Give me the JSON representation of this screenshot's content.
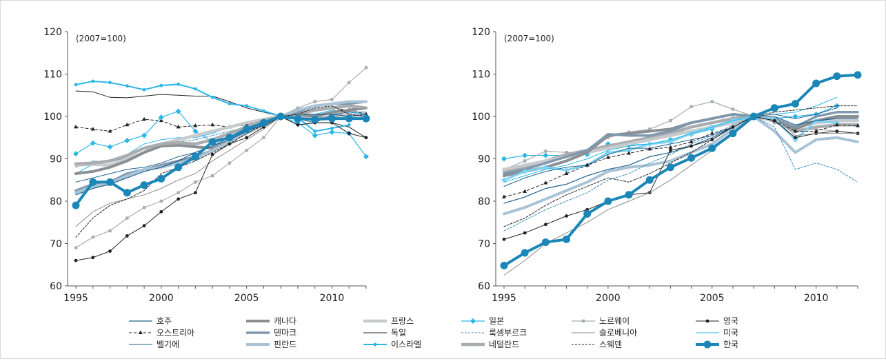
{
  "colors": {
    "dark_blue": "#1e5f8e",
    "mid_blue": "#3d8fc0",
    "cyan": "#2bb6e8",
    "light_cyan": "#7fd3f1",
    "grey_dark": "#8a8f93",
    "grey_mid": "#a9adb0",
    "grey_light": "#c8cbce",
    "steel": "#7f98ad",
    "pale_blue": "#a9c3d6",
    "korea": "#1b86b8",
    "black": "#222222"
  },
  "legend": [
    {
      "key": "aus",
      "label": "호주"
    },
    {
      "key": "can",
      "label": "캐나다"
    },
    {
      "key": "fra",
      "label": "프랑스"
    },
    {
      "key": "jpn",
      "label": "일본"
    },
    {
      "key": "nor",
      "label": "노르웨이"
    },
    {
      "key": "uk",
      "label": "영국"
    },
    {
      "key": "aut",
      "label": "오스트리아"
    },
    {
      "key": "den",
      "label": "덴마크"
    },
    {
      "key": "ger",
      "label": "독일"
    },
    {
      "key": "lux",
      "label": "룩셈부르크"
    },
    {
      "key": "slo",
      "label": "슬로베니아"
    },
    {
      "key": "usa",
      "label": "미국"
    },
    {
      "key": "bel",
      "label": "벨기에"
    },
    {
      "key": "fin",
      "label": "핀란드"
    },
    {
      "key": "isr",
      "label": "이스라엘"
    },
    {
      "key": "ned",
      "label": "네덜란드"
    },
    {
      "key": "swe",
      "label": "스웨덴"
    },
    {
      "key": "kor",
      "label": "한국"
    }
  ],
  "chart_data": [
    {
      "type": "line",
      "note": "(2007=100)",
      "ylim": [
        60,
        120
      ],
      "yticks": [
        "60",
        "70",
        "80",
        "90",
        "100",
        "110",
        "120"
      ],
      "xticks": [
        "1995",
        "2000",
        "2005",
        "2010"
      ],
      "x": [
        1995,
        1996,
        1997,
        1998,
        1999,
        2000,
        2001,
        2002,
        2003,
        2004,
        2005,
        2006,
        2007,
        2008,
        2009,
        2010,
        2011,
        2012
      ],
      "series": [
        {
          "key": "ger",
          "values": [
            106,
            105.8,
            104.5,
            104.4,
            104.8,
            105.2,
            105,
            104.8,
            104.8,
            103.5,
            102,
            101,
            100,
            98,
            98.5,
            98.5,
            97.5,
            95
          ]
        },
        {
          "key": "isr",
          "values": [
            107.5,
            108.3,
            108,
            107.2,
            106.3,
            107.3,
            107.6,
            106.5,
            104.5,
            103,
            102.5,
            101.3,
            100,
            99.7,
            96.5,
            97.2,
            98,
            null
          ]
        },
        {
          "key": "aut",
          "values": [
            97.5,
            97,
            96.5,
            98,
            99.3,
            99,
            97.5,
            97.8,
            98,
            97.5,
            98,
            99,
            100,
            100.5,
            101.5,
            102,
            101.5,
            100.5
          ]
        },
        {
          "key": "jpn",
          "values": [
            91.2,
            93.7,
            92.8,
            94.3,
            95.5,
            99.8,
            101.2,
            96.5,
            94,
            94.8,
            97,
            99,
            100,
            98.5,
            95.5,
            96.3,
            96,
            90.5
          ]
        },
        {
          "key": "usa",
          "values": [
            86.5,
            88.7,
            89.5,
            91,
            93.5,
            94.5,
            95,
            95,
            96,
            97.5,
            98.5,
            99.5,
            100,
            100,
            100.5,
            101.5,
            101,
            100.5
          ]
        },
        {
          "key": "lux",
          "values": [
            88,
            89.5,
            89.2,
            90.3,
            91.5,
            93,
            94,
            94.5,
            95.5,
            96.5,
            97.5,
            98.5,
            100,
            99.5,
            99,
            100,
            100,
            100
          ]
        },
        {
          "key": "fra",
          "values": [
            88.5,
            88.7,
            88.5,
            90,
            91.5,
            93.5,
            94.5,
            95.5,
            96.5,
            97.5,
            98.5,
            99.3,
            100,
            100,
            99.5,
            100,
            100.5,
            100
          ]
        },
        {
          "key": "can",
          "values": [
            86.5,
            87,
            88,
            89.5,
            91.5,
            93,
            93.2,
            92.8,
            92.5,
            94,
            96.5,
            98.5,
            100,
            100.5,
            100,
            101,
            101.5,
            102
          ]
        },
        {
          "key": "ned",
          "values": [
            88.8,
            89,
            89.5,
            90.8,
            92.5,
            93.5,
            93.8,
            93.5,
            94.5,
            96,
            97.5,
            99,
            100,
            100.5,
            101.5,
            102,
            102.5,
            102
          ]
        },
        {
          "key": "den",
          "values": [
            82.5,
            84,
            84.5,
            86.5,
            87.5,
            88.5,
            89.5,
            90.5,
            92,
            94,
            96,
            98.5,
            100,
            101,
            102.5,
            103,
            103,
            103.5
          ]
        },
        {
          "key": "fin",
          "values": [
            82,
            83.5,
            84.2,
            86,
            87.5,
            88,
            89,
            90,
            92,
            94,
            96,
            98,
            100,
            101.5,
            102.5,
            103,
            103.5,
            103.5
          ]
        },
        {
          "key": "bel",
          "values": [
            84.5,
            85.5,
            86.5,
            87.5,
            88,
            89,
            90.5,
            91.5,
            93,
            95,
            96.5,
            98,
            100,
            99.5,
            98.5,
            100.5,
            101,
            101
          ]
        },
        {
          "key": "aus",
          "values": [
            81.5,
            83,
            84,
            85.5,
            87,
            88,
            89.5,
            91.5,
            93,
            94.5,
            96.5,
            98.5,
            100,
            100.5,
            100.5,
            100.5,
            100,
            100.5
          ]
        },
        {
          "key": "nor",
          "values": [
            69,
            71.5,
            73,
            76,
            78.5,
            80,
            82,
            84.5,
            86,
            89,
            92,
            95,
            100,
            102,
            103.5,
            104,
            108,
            111.5
          ]
        },
        {
          "key": "slo",
          "values": [
            74,
            77.5,
            79.5,
            80.5,
            81.5,
            83,
            85,
            86.5,
            89.5,
            92,
            94.5,
            97,
            100,
            100.5,
            100,
            99.5,
            101.5,
            102
          ]
        },
        {
          "key": "swe",
          "values": [
            71.5,
            76,
            79,
            80.5,
            82.5,
            86.5,
            88,
            89.5,
            91.5,
            93.5,
            96,
            98,
            100,
            100.5,
            102,
            102.5,
            100.5,
            100
          ]
        },
        {
          "key": "uk",
          "values": [
            66,
            66.7,
            68.2,
            71.8,
            74.2,
            77.5,
            80.5,
            82,
            91,
            93.5,
            95,
            97.5,
            100,
            98,
            98.5,
            98.5,
            96,
            95
          ]
        },
        {
          "key": "kor",
          "values": [
            79,
            84.5,
            84.5,
            82,
            83.8,
            85.3,
            88,
            90.5,
            94,
            95,
            97,
            98.5,
            100,
            99.5,
            99.3,
            99.5,
            99.5,
            99.5
          ]
        }
      ]
    },
    {
      "type": "line",
      "note": "(2007=100)",
      "ylim": [
        60,
        120
      ],
      "yticks": [
        "60",
        "70",
        "80",
        "90",
        "100",
        "110",
        "120"
      ],
      "xticks": [
        "1995",
        "2000",
        "2005",
        "2010"
      ],
      "x": [
        1995,
        1996,
        1997,
        1998,
        1999,
        2000,
        2001,
        2002,
        2003,
        2004,
        2005,
        2006,
        2007,
        2008,
        2009,
        2010,
        2011,
        2012
      ],
      "series": [
        {
          "key": "jpn",
          "values": [
            90,
            90.8,
            90.8,
            90.8,
            91,
            93.5,
            93.2,
            93.5,
            94.5,
            95.8,
            97,
            99.5,
            100,
            99.5,
            100,
            100.5,
            102.5,
            null
          ]
        },
        {
          "key": "nor",
          "values": [
            87.5,
            89.5,
            91.8,
            91.5,
            91.5,
            95,
            96.3,
            97,
            99,
            102.3,
            103.5,
            101.7,
            100,
            98.5,
            96.5,
            97,
            96.5,
            96
          ]
        },
        {
          "key": "ned",
          "values": [
            87,
            88,
            89.5,
            91,
            92,
            93,
            94,
            95,
            96,
            97.5,
            98.5,
            99.5,
            100,
            99,
            96.5,
            97.5,
            98,
            98
          ]
        },
        {
          "key": "fra",
          "values": [
            87.5,
            88.5,
            89.5,
            90.5,
            91.5,
            92.5,
            93.5,
            94.5,
            95.5,
            96.5,
            97.5,
            98.5,
            100,
            99,
            97.5,
            98.5,
            99,
            99
          ]
        },
        {
          "key": "can",
          "values": [
            86,
            87,
            88,
            89.5,
            91.5,
            95.5,
            96,
            96.5,
            97,
            98.5,
            99.5,
            100.5,
            100,
            99.5,
            97,
            99,
            100,
            100
          ]
        },
        {
          "key": "den",
          "values": [
            86.5,
            87.5,
            89,
            90.5,
            92,
            95.8,
            95.5,
            95.5,
            96.5,
            98.5,
            99.5,
            100.5,
            100,
            99.5,
            97.5,
            100,
            101,
            101
          ]
        },
        {
          "key": "jpn2",
          "values": [
            85,
            87,
            88,
            87.3,
            88.5,
            91.5,
            92,
            93.5,
            94,
            96,
            97.5,
            99,
            100,
            99.5,
            94.5,
            99,
            98.5,
            null
          ]
        },
        {
          "key": "usa",
          "values": [
            84.5,
            86,
            87.5,
            88.5,
            90,
            92,
            93,
            93.5,
            94.5,
            96,
            97.5,
            99,
            100,
            100.5,
            101,
            102.5,
            104.5,
            null
          ]
        },
        {
          "key": "bel",
          "values": [
            83.5,
            85.5,
            87,
            88,
            88.5,
            91,
            92.5,
            92.5,
            93.5,
            94.5,
            95.5,
            97.5,
            100,
            100.5,
            99.5,
            100.5,
            102,
            null
          ]
        },
        {
          "key": "aut",
          "values": [
            81,
            82.3,
            84.3,
            86.5,
            88.5,
            90.3,
            91.3,
            92.3,
            92.7,
            94,
            96,
            97.5,
            100,
            99,
            96.5,
            96.5,
            98,
            97.8
          ]
        },
        {
          "key": "aus",
          "values": [
            79.5,
            81,
            83,
            84,
            86,
            87.5,
            88.5,
            90.5,
            91.5,
            93,
            95,
            97.5,
            100,
            100,
            98,
            99,
            99.5,
            99.5
          ]
        },
        {
          "key": "fin",
          "values": [
            77,
            78.5,
            80.5,
            82.5,
            84.5,
            87,
            88,
            88.5,
            89.5,
            91.5,
            93.5,
            97,
            100,
            96.5,
            91.5,
            94.5,
            95,
            94
          ]
        },
        {
          "key": "swe",
          "values": [
            74,
            76,
            79,
            81.5,
            83.5,
            85.5,
            84.5,
            86.5,
            89,
            91.5,
            94.5,
            97.5,
            100,
            101,
            101.5,
            102,
            102.5,
            102.5
          ]
        },
        {
          "key": "lux",
          "values": [
            73,
            75.5,
            78,
            80,
            82,
            85,
            86.5,
            89,
            91,
            93.5,
            95.5,
            98,
            100,
            97.5,
            87.5,
            89,
            87.5,
            84.5
          ]
        },
        {
          "key": "uk",
          "values": [
            71,
            72.5,
            74.5,
            76.5,
            78,
            80,
            81.5,
            82,
            92,
            93,
            94.5,
            97.5,
            100,
            99,
            95,
            96,
            96.5,
            96
          ]
        },
        {
          "key": "slo",
          "values": [
            62.5,
            66,
            70,
            72.5,
            75,
            78,
            80,
            82,
            85,
            88.5,
            92,
            96,
            100,
            100,
            95.5,
            96,
            96,
            96
          ]
        },
        {
          "key": "kor",
          "values": [
            64.8,
            67.8,
            70.3,
            71,
            77,
            80,
            81.5,
            85,
            88,
            90.2,
            92.5,
            96,
            100,
            102,
            103,
            107.8,
            109.5,
            109.8
          ]
        }
      ]
    }
  ]
}
